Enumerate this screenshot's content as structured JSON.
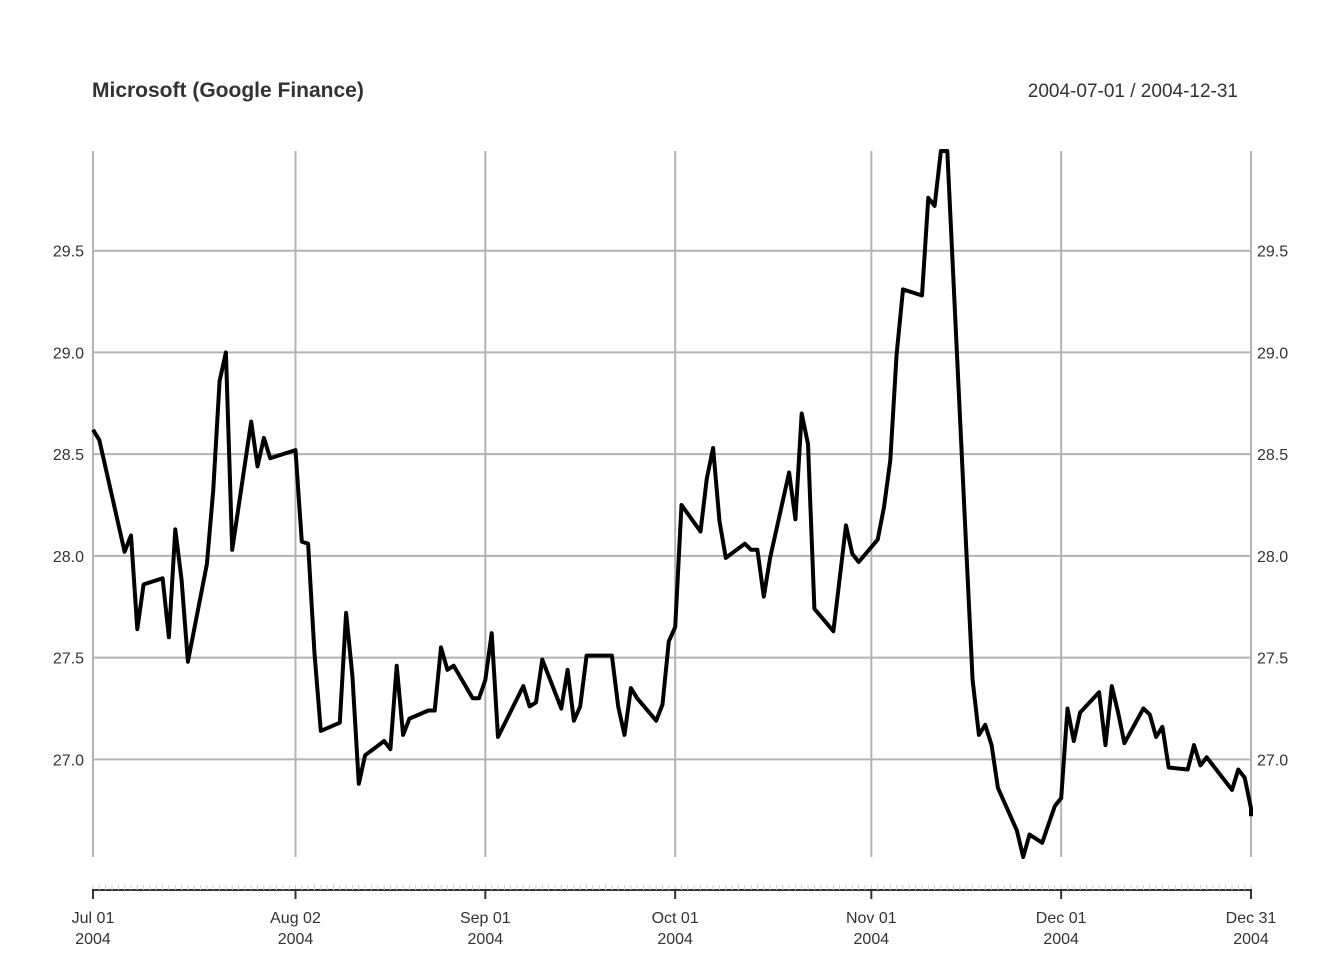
{
  "chart_data": {
    "type": "line",
    "title": "Microsoft (Google Finance)",
    "date_range": "2004-07-01 / 2004-12-31",
    "xlabel": "",
    "ylabel": "",
    "ylim": [
      26.52,
      29.99
    ],
    "grid": true,
    "y_ticks": [
      "27.0",
      "27.5",
      "28.0",
      "28.5",
      "29.0",
      "29.5"
    ],
    "x_ticks": [
      {
        "date": "2004-07-01",
        "line1": "Jul 01",
        "line2": "2004"
      },
      {
        "date": "2004-08-02",
        "line1": "Aug 02",
        "line2": "2004"
      },
      {
        "date": "2004-09-01",
        "line1": "Sep 01",
        "line2": "2004"
      },
      {
        "date": "2004-10-01",
        "line1": "Oct 01",
        "line2": "2004"
      },
      {
        "date": "2004-11-01",
        "line1": "Nov 01",
        "line2": "2004"
      },
      {
        "date": "2004-12-01",
        "line1": "Dec 01",
        "line2": "2004"
      },
      {
        "date": "2004-12-31",
        "line1": "Dec 31",
        "line2": "2004"
      }
    ],
    "series": [
      {
        "color": "#000000",
        "points": [
          [
            "2004-07-01",
            28.62
          ],
          [
            "2004-07-02",
            28.57
          ],
          [
            "2004-07-06",
            28.02
          ],
          [
            "2004-07-07",
            28.1
          ],
          [
            "2004-07-08",
            27.64
          ],
          [
            "2004-07-09",
            27.86
          ],
          [
            "2004-07-12",
            27.89
          ],
          [
            "2004-07-13",
            27.6
          ],
          [
            "2004-07-14",
            28.13
          ],
          [
            "2004-07-15",
            27.88
          ],
          [
            "2004-07-16",
            27.48
          ],
          [
            "2004-07-19",
            27.96
          ],
          [
            "2004-07-20",
            28.32
          ],
          [
            "2004-07-21",
            28.86
          ],
          [
            "2004-07-22",
            29.0
          ],
          [
            "2004-07-23",
            28.03
          ],
          [
            "2004-07-26",
            28.66
          ],
          [
            "2004-07-27",
            28.44
          ],
          [
            "2004-07-28",
            28.58
          ],
          [
            "2004-07-29",
            28.48
          ],
          [
            "2004-08-02",
            28.52
          ],
          [
            "2004-08-03",
            28.07
          ],
          [
            "2004-08-04",
            28.06
          ],
          [
            "2004-08-05",
            27.52
          ],
          [
            "2004-08-06",
            27.14
          ],
          [
            "2004-08-09",
            27.18
          ],
          [
            "2004-08-10",
            27.72
          ],
          [
            "2004-08-11",
            27.41
          ],
          [
            "2004-08-12",
            26.88
          ],
          [
            "2004-08-13",
            27.02
          ],
          [
            "2004-08-16",
            27.09
          ],
          [
            "2004-08-17",
            27.05
          ],
          [
            "2004-08-18",
            27.46
          ],
          [
            "2004-08-19",
            27.12
          ],
          [
            "2004-08-20",
            27.2
          ],
          [
            "2004-08-23",
            27.24
          ],
          [
            "2004-08-24",
            27.24
          ],
          [
            "2004-08-25",
            27.55
          ],
          [
            "2004-08-26",
            27.44
          ],
          [
            "2004-08-27",
            27.46
          ],
          [
            "2004-08-30",
            27.3
          ],
          [
            "2004-08-31",
            27.3
          ],
          [
            "2004-09-01",
            27.39
          ],
          [
            "2004-09-02",
            27.62
          ],
          [
            "2004-09-03",
            27.11
          ],
          [
            "2004-09-07",
            27.36
          ],
          [
            "2004-09-08",
            27.26
          ],
          [
            "2004-09-09",
            27.28
          ],
          [
            "2004-09-10",
            27.49
          ],
          [
            "2004-09-13",
            27.25
          ],
          [
            "2004-09-14",
            27.44
          ],
          [
            "2004-09-15",
            27.19
          ],
          [
            "2004-09-16",
            27.26
          ],
          [
            "2004-09-17",
            27.51
          ],
          [
            "2004-09-20",
            27.51
          ],
          [
            "2004-09-21",
            27.51
          ],
          [
            "2004-09-22",
            27.26
          ],
          [
            "2004-09-23",
            27.12
          ],
          [
            "2004-09-24",
            27.35
          ],
          [
            "2004-09-25",
            27.3
          ],
          [
            "2004-09-28",
            27.19
          ],
          [
            "2004-09-29",
            27.27
          ],
          [
            "2004-09-30",
            27.58
          ],
          [
            "2004-10-01",
            27.65
          ],
          [
            "2004-10-02",
            28.25
          ],
          [
            "2004-10-05",
            28.12
          ],
          [
            "2004-10-06",
            28.38
          ],
          [
            "2004-10-07",
            28.53
          ],
          [
            "2004-10-08",
            28.17
          ],
          [
            "2004-10-09",
            27.99
          ],
          [
            "2004-10-12",
            28.06
          ],
          [
            "2004-10-13",
            28.03
          ],
          [
            "2004-10-14",
            28.03
          ],
          [
            "2004-10-15",
            27.8
          ],
          [
            "2004-10-16",
            27.99
          ],
          [
            "2004-10-19",
            28.41
          ],
          [
            "2004-10-20",
            28.18
          ],
          [
            "2004-10-21",
            28.7
          ],
          [
            "2004-10-22",
            28.55
          ],
          [
            "2004-10-23",
            27.74
          ],
          [
            "2004-10-26",
            27.63
          ],
          [
            "2004-10-27",
            27.89
          ],
          [
            "2004-10-28",
            28.15
          ],
          [
            "2004-10-29",
            28.01
          ],
          [
            "2004-10-30",
            27.97
          ],
          [
            "2004-11-02",
            28.08
          ],
          [
            "2004-11-03",
            28.24
          ],
          [
            "2004-11-04",
            28.47
          ],
          [
            "2004-11-05",
            28.99
          ],
          [
            "2004-11-06",
            29.31
          ],
          [
            "2004-11-09",
            29.28
          ],
          [
            "2004-11-10",
            29.76
          ],
          [
            "2004-11-11",
            29.72
          ],
          [
            "2004-11-12",
            29.99
          ],
          [
            "2004-11-13",
            29.99
          ],
          [
            "2004-11-16",
            28.04
          ],
          [
            "2004-11-17",
            27.39
          ],
          [
            "2004-11-18",
            27.12
          ],
          [
            "2004-11-19",
            27.17
          ],
          [
            "2004-11-20",
            27.07
          ],
          [
            "2004-11-21",
            26.86
          ],
          [
            "2004-11-24",
            26.65
          ],
          [
            "2004-11-25",
            26.52
          ],
          [
            "2004-11-26",
            26.63
          ],
          [
            "2004-11-28",
            26.59
          ],
          [
            "2004-11-29",
            26.68
          ],
          [
            "2004-11-30",
            26.77
          ],
          [
            "2004-12-01",
            26.81
          ],
          [
            "2004-12-02",
            27.25
          ],
          [
            "2004-12-03",
            27.09
          ],
          [
            "2004-12-04",
            27.23
          ],
          [
            "2004-12-07",
            27.33
          ],
          [
            "2004-12-08",
            27.07
          ],
          [
            "2004-12-09",
            27.36
          ],
          [
            "2004-12-10",
            27.23
          ],
          [
            "2004-12-11",
            27.08
          ],
          [
            "2004-12-14",
            27.25
          ],
          [
            "2004-12-15",
            27.22
          ],
          [
            "2004-12-16",
            27.11
          ],
          [
            "2004-12-17",
            27.16
          ],
          [
            "2004-12-18",
            26.96
          ],
          [
            "2004-12-21",
            26.95
          ],
          [
            "2004-12-22",
            27.07
          ],
          [
            "2004-12-23",
            26.97
          ],
          [
            "2004-12-24",
            27.01
          ],
          [
            "2004-12-28",
            26.85
          ],
          [
            "2004-12-29",
            26.95
          ],
          [
            "2004-12-30",
            26.91
          ],
          [
            "2004-12-31",
            26.76
          ],
          [
            "2004-12-31",
            26.72
          ]
        ]
      }
    ]
  }
}
